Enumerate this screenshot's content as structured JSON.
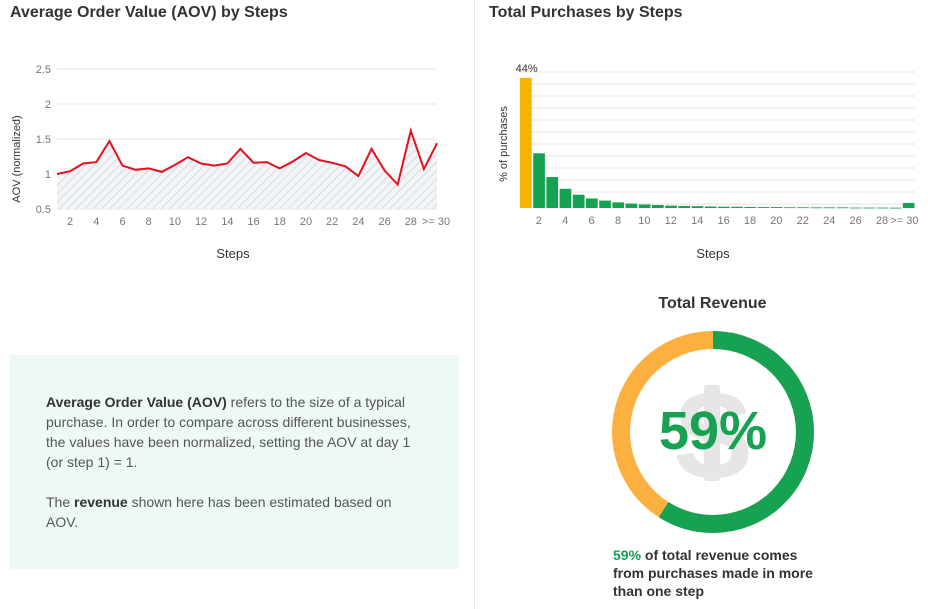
{
  "colors": {
    "accent_green": "#17a152",
    "orange": "#fbb040",
    "line_red": "#e8101e",
    "highlight_bar": "#f5b400"
  },
  "aov_panel": {
    "title": "Average Order Value (AOV) by Steps"
  },
  "purchases_panel": {
    "title": "Total Purchases by Steps"
  },
  "info_box": {
    "p1_bold": "Average Order Value (AOV)",
    "p1_rest": " refers to the size of a typical purchase. In order to compare across different businesses, the values have been normalized, setting the AOV at day 1 (or step 1) = 1.",
    "p2_pre": "The ",
    "p2_bold": "revenue",
    "p2_rest": " shown here has been estimated based on AOV."
  },
  "revenue_panel": {
    "title": "Total Revenue",
    "icon": "dollar-icon",
    "percent_label": "59%",
    "percent_value": 59,
    "caption_pct": "59%",
    "caption_rest": " of total revenue comes from purchases made in more than one step"
  },
  "chart_data": [
    {
      "type": "area",
      "title": "Average Order Value (AOV) by Steps",
      "xlabel": "Steps",
      "ylabel": "AOV (normalized)",
      "ylim": [
        0.5,
        2.5
      ],
      "yticks": [
        "0.5",
        "1",
        "1.5",
        "2",
        "2.5"
      ],
      "x": [
        1,
        2,
        3,
        4,
        5,
        6,
        7,
        8,
        9,
        10,
        11,
        12,
        13,
        14,
        15,
        16,
        17,
        18,
        19,
        20,
        21,
        22,
        23,
        24,
        25,
        26,
        27,
        28,
        29,
        30
      ],
      "xtick_labels": [
        "2",
        "4",
        "6",
        "8",
        "10",
        "12",
        "14",
        "16",
        "18",
        "20",
        "22",
        "24",
        "26",
        "28",
        ">= 30"
      ],
      "xtick_positions": [
        2,
        4,
        6,
        8,
        10,
        12,
        14,
        16,
        18,
        20,
        22,
        24,
        26,
        28,
        30
      ],
      "values": [
        1.0,
        1.04,
        1.15,
        1.17,
        1.47,
        1.12,
        1.06,
        1.08,
        1.03,
        1.13,
        1.24,
        1.15,
        1.12,
        1.15,
        1.36,
        1.16,
        1.17,
        1.08,
        1.18,
        1.3,
        1.2,
        1.16,
        1.11,
        0.97,
        1.36,
        1.05,
        0.85,
        1.62,
        1.07,
        1.44
      ]
    },
    {
      "type": "bar",
      "title": "Total Purchases by Steps",
      "xlabel": "Steps",
      "ylabel": "% of purchases",
      "ylim": [
        0,
        46
      ],
      "highlight_label": "44%",
      "x": [
        1,
        2,
        3,
        4,
        5,
        6,
        7,
        8,
        9,
        10,
        11,
        12,
        13,
        14,
        15,
        16,
        17,
        18,
        19,
        20,
        21,
        22,
        23,
        24,
        25,
        26,
        27,
        28,
        29,
        30
      ],
      "xtick_labels": [
        "2",
        "4",
        "6",
        "8",
        "10",
        "12",
        "14",
        "16",
        "18",
        "20",
        "22",
        "24",
        "26",
        "28",
        ">= 30"
      ],
      "xtick_positions": [
        2,
        4,
        6,
        8,
        10,
        12,
        14,
        16,
        18,
        20,
        22,
        24,
        26,
        28,
        30
      ],
      "values": [
        44,
        18.5,
        10.5,
        6.5,
        4.5,
        3.2,
        2.5,
        1.9,
        1.5,
        1.2,
        1.0,
        0.8,
        0.7,
        0.6,
        0.5,
        0.45,
        0.4,
        0.35,
        0.3,
        0.3,
        0.25,
        0.25,
        0.2,
        0.2,
        0.2,
        0.15,
        0.15,
        0.15,
        0.1,
        1.7
      ]
    }
  ]
}
